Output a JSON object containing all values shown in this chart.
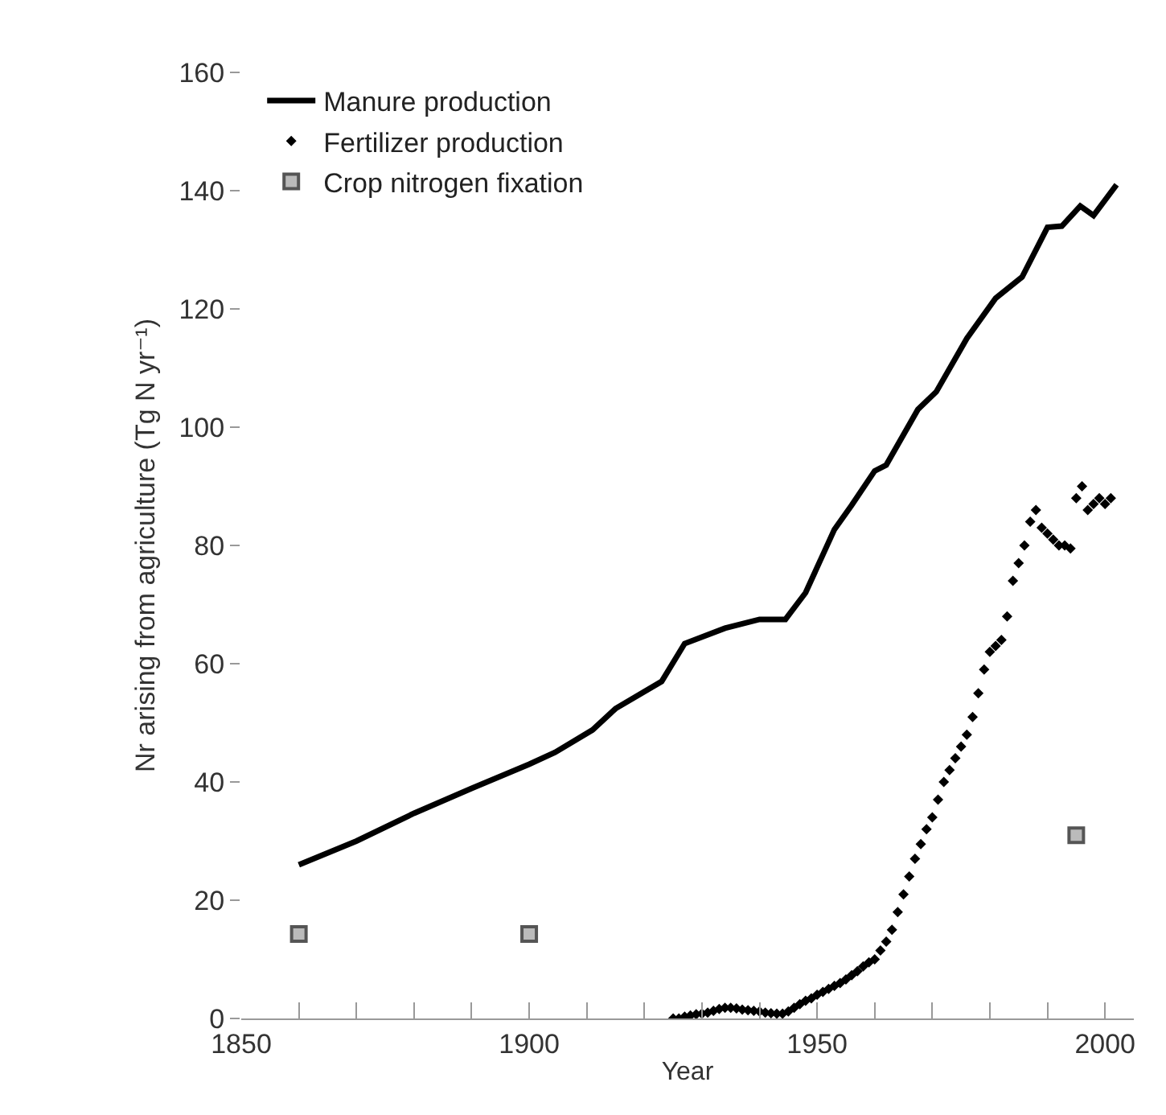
{
  "chart_data": {
    "type": "line",
    "xlabel": "Year",
    "ylabel": "Nr arising from agriculture (Tg N yr⁻¹)",
    "xlim": [
      1850,
      2005
    ],
    "xticks": [
      1850,
      {
        "value": 1860,
        "label": null
      },
      {
        "value": 1870,
        "label": null
      },
      {
        "value": 1880,
        "label": null
      },
      {
        "value": 1890,
        "label": null
      },
      1900,
      {
        "value": 1910,
        "label": null
      },
      {
        "value": 1920,
        "label": null
      },
      {
        "value": 1930,
        "label": null
      },
      {
        "value": 1940,
        "label": null
      },
      1950,
      {
        "value": 1960,
        "label": null
      },
      {
        "value": 1970,
        "label": null
      },
      {
        "value": 1980,
        "label": null
      },
      {
        "value": 1990,
        "label": null
      },
      2000
    ],
    "ylim": [
      0,
      160
    ],
    "yticks": [
      0,
      20,
      40,
      60,
      80,
      100,
      120,
      140,
      160
    ],
    "grid": false,
    "legend": "top left",
    "series": [
      {
        "name": "Manure production",
        "color": "#000000",
        "marker": "none",
        "line_style": "solid",
        "x": [
          1860,
          1870,
          1880,
          1890,
          1900,
          1904.5,
          1911,
          1915,
          1923,
          1927,
          1934,
          1940,
          1944.5,
          1948,
          1953,
          1956,
          1960,
          1962,
          1967.5,
          1970.7,
          1976,
          1981,
          1985.6,
          1990,
          1992.5,
          1995.7,
          1998,
          2002
        ],
        "values": [
          26,
          30,
          34.7,
          38.9,
          43,
          45,
          48.8,
          52.4,
          57,
          63.4,
          66,
          67.5,
          67.5,
          72,
          82.7,
          86.8,
          92.6,
          93.6,
          103,
          106,
          115,
          121.8,
          125.4,
          133.8,
          134,
          137.4,
          135.8,
          141
        ]
      },
      {
        "name": "Fertilizer production",
        "type": "scatter",
        "color": "#000000",
        "marker": "diamond",
        "x": [
          1925,
          1926,
          1927,
          1928,
          1929,
          1930,
          1931,
          1932,
          1933,
          1934,
          1935,
          1936,
          1937,
          1938,
          1939,
          1940,
          1941,
          1942,
          1943,
          1944,
          1945,
          1946,
          1947,
          1948,
          1949,
          1950,
          1951,
          1952,
          1953,
          1954,
          1955,
          1956,
          1957,
          1958,
          1959,
          1960,
          1961,
          1962,
          1963,
          1964,
          1965,
          1966,
          1967,
          1968,
          1969,
          1970,
          1971,
          1972,
          1973,
          1974,
          1975,
          1976,
          1977,
          1978,
          1979,
          1980,
          1981,
          1982,
          1983,
          1984,
          1985,
          1986,
          1987,
          1988,
          1989,
          1990,
          1991,
          1992,
          1993,
          1994,
          1995,
          1996,
          1997,
          1998,
          1999,
          2000,
          2001
        ],
        "values": [
          0,
          0,
          0.3,
          0.5,
          0.7,
          0.8,
          1,
          1.3,
          1.6,
          1.8,
          1.8,
          1.7,
          1.5,
          1.4,
          1.3,
          1.2,
          1,
          0.9,
          0.8,
          0.8,
          1.2,
          1.8,
          2.4,
          3,
          3.4,
          4,
          4.5,
          5,
          5.5,
          6,
          6.6,
          7.3,
          8,
          8.8,
          9.5,
          10,
          11.5,
          13,
          15,
          18,
          21,
          24,
          27,
          29.5,
          32,
          34,
          37,
          40,
          42,
          44,
          46,
          48,
          51,
          55,
          59,
          62,
          63,
          64,
          68,
          74,
          77,
          80,
          84,
          86,
          83,
          82,
          81,
          80,
          80,
          79.5,
          88,
          90,
          86,
          87,
          88,
          87,
          88
        ]
      },
      {
        "name": "Crop nitrogen fixation",
        "type": "scatter",
        "color": "#555555",
        "marker": "square",
        "x": [
          1860,
          1900,
          1995
        ],
        "values": [
          14.3,
          14.3,
          31
        ]
      }
    ]
  }
}
